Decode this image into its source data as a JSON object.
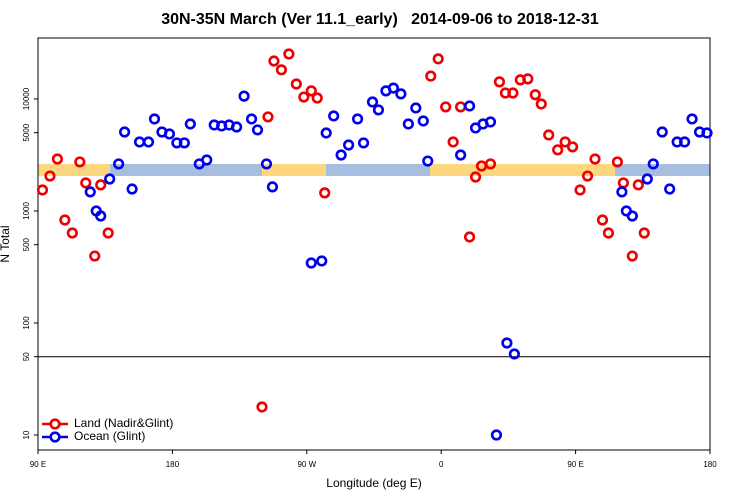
{
  "chart_data": {
    "type": "scatter",
    "title": "30N-35N March (Ver 11.1_early)   2014-09-06 to 2018-12-31",
    "x_label": "Longitude (deg E)",
    "y_label": "N Total",
    "log_y": true,
    "legend": "bottom-left",
    "hline": 50,
    "xlim": [
      90,
      540
    ],
    "ylim": [
      7.35,
      35000
    ],
    "xticks": [
      {
        "value": 90,
        "label": "90 E"
      },
      180,
      {
        "value": 270,
        "label": "90 W"
      },
      {
        "value": 360,
        "label": "0"
      },
      {
        "value": 450,
        "label": "90 E"
      },
      {
        "value": 540,
        "label": "180"
      }
    ],
    "yticks": [
      10,
      50,
      100,
      500,
      1000,
      5000,
      10000
    ],
    "series": [
      {
        "name": "Land (Nadir&Glint)",
        "color": "#ee0000",
        "x": [
          93,
          98,
          103,
          108,
          113,
          118,
          122,
          128,
          132,
          137,
          240,
          244,
          248,
          253,
          258,
          263,
          268,
          273,
          277,
          282,
          353,
          358,
          363,
          368,
          373,
          379,
          383,
          387,
          393,
          399,
          403,
          408,
          413,
          418,
          423,
          427,
          432,
          438,
          443,
          448,
          453,
          458,
          463,
          468,
          472,
          478,
          482,
          488,
          492,
          496
        ],
        "values": [
          1540,
          2050,
          2910,
          831,
          636,
          2740,
          1780,
          396,
          1710,
          636,
          17.8,
          6910,
          21800,
          18200,
          25200,
          13600,
          10400,
          11800,
          10200,
          1450,
          16000,
          22800,
          8490,
          4130,
          8490,
          586,
          2010,
          2520,
          2630,
          14200,
          11300,
          11300,
          14800,
          15100,
          10900,
          9020,
          4770,
          3510,
          4130,
          3730,
          1540,
          2050,
          2910,
          831,
          636,
          2740,
          1780,
          396,
          1710,
          636
        ]
      },
      {
        "name": "Ocean (Glint)",
        "color": "#0000ee",
        "x": [
          125,
          129,
          132,
          138,
          144,
          148,
          153,
          158,
          164,
          168,
          173,
          178,
          183,
          188,
          192,
          198,
          203,
          208,
          213,
          218,
          223,
          228,
          233,
          237,
          243,
          247,
          273,
          280,
          283,
          288,
          293,
          298,
          304,
          308,
          314,
          318,
          323,
          328,
          333,
          338,
          343,
          348,
          351,
          373,
          379,
          383,
          388,
          393,
          397,
          404,
          409,
          481,
          484,
          488,
          498,
          502,
          508,
          513,
          518,
          523,
          528,
          533,
          538
        ],
        "values": [
          1480,
          1000,
          902,
          1930,
          2630,
          5070,
          1570,
          4130,
          4130,
          6630,
          5070,
          4870,
          4050,
          4050,
          5980,
          2630,
          2850,
          5860,
          5740,
          5860,
          5620,
          10600,
          6630,
          5290,
          2630,
          1640,
          343,
          358,
          4970,
          7050,
          3160,
          3880,
          6630,
          4050,
          9400,
          7980,
          11800,
          12500,
          11100,
          5980,
          8310,
          6360,
          2790,
          3160,
          8660,
          5510,
          5980,
          6230,
          10,
          66.3,
          52.9,
          1480,
          1000,
          902,
          1930,
          2630,
          5070,
          1570,
          4130,
          4130,
          6630,
          5070,
          4970
        ]
      }
    ]
  }
}
